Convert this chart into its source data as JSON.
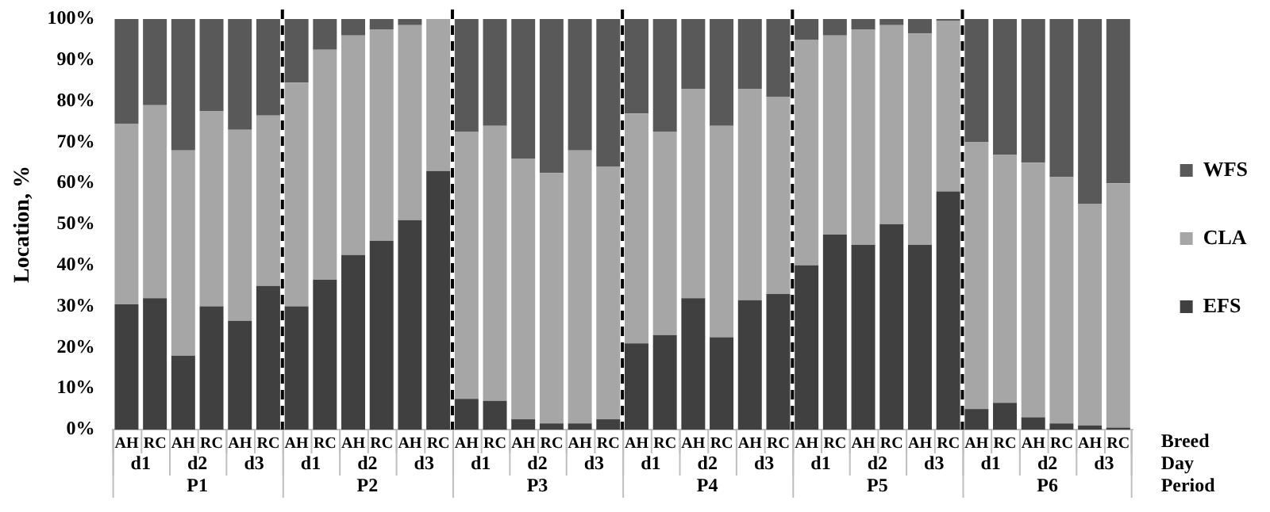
{
  "chart_data": {
    "type": "bar",
    "stacked": true,
    "ylabel": "Location, %",
    "categories": [
      [
        "AH",
        "d1",
        null
      ],
      [
        "RC",
        null,
        "P1"
      ],
      [
        "AH",
        "d2",
        null
      ],
      [
        "RC",
        null,
        null
      ],
      [
        "AH",
        "d3",
        null
      ],
      [
        "RC",
        null,
        null
      ],
      [
        "AH",
        "d1",
        null
      ],
      [
        "RC",
        null,
        "P2"
      ],
      [
        "AH",
        "d2",
        null
      ],
      [
        "RC",
        null,
        null
      ],
      [
        "AH",
        "d3",
        null
      ],
      [
        "RC",
        null,
        null
      ],
      [
        "AH",
        "d1",
        null
      ],
      [
        "RC",
        null,
        "P3"
      ],
      [
        "AH",
        "d2",
        null
      ],
      [
        "RC",
        null,
        null
      ],
      [
        "AH",
        "d3",
        null
      ],
      [
        "RC",
        null,
        null
      ],
      [
        "AH",
        "d1",
        null
      ],
      [
        "RC",
        null,
        "P4"
      ],
      [
        "AH",
        "d2",
        null
      ],
      [
        "RC",
        null,
        null
      ],
      [
        "AH",
        "d3",
        null
      ],
      [
        "RC",
        null,
        null
      ],
      [
        "AH",
        "d1",
        null
      ],
      [
        "RC",
        null,
        "P5"
      ],
      [
        "AH",
        "d2",
        null
      ],
      [
        "RC",
        null,
        null
      ],
      [
        "AH",
        "d3",
        null
      ],
      [
        "RC",
        null,
        null
      ],
      [
        "AH",
        "d1",
        null
      ],
      [
        "RC",
        null,
        "P6"
      ],
      [
        "AH",
        "d2",
        null
      ],
      [
        "RC",
        null,
        null
      ],
      [
        "AH",
        "d3",
        null
      ],
      [
        "RC",
        null,
        null
      ]
    ],
    "series": [
      {
        "name": "EFS",
        "color": "#404040",
        "values": [
          30.5,
          32,
          18,
          30,
          26.5,
          35,
          30,
          36.5,
          42.5,
          46,
          51,
          63,
          7.5,
          7,
          2.5,
          1.5,
          1.5,
          2.5,
          21,
          23,
          32,
          22.5,
          31.5,
          33,
          40,
          47.5,
          45,
          50,
          45,
          58,
          5,
          6.5,
          3,
          1.5,
          1,
          0.5
        ]
      },
      {
        "name": "CLA",
        "color": "#a6a6a6",
        "values": [
          44,
          47,
          50,
          47.5,
          46.5,
          41.5,
          54.5,
          56,
          53.5,
          51.5,
          47.5,
          37,
          65,
          67,
          63.5,
          61,
          66.5,
          61.5,
          56,
          49.5,
          51,
          51.5,
          51.5,
          48,
          55,
          48.5,
          52.5,
          48.5,
          51.5,
          41.5,
          65,
          60.5,
          62,
          60,
          54,
          59.5
        ]
      },
      {
        "name": "WFS",
        "color": "#595959",
        "values": [
          25.5,
          21,
          32,
          22.5,
          27,
          23.5,
          15.5,
          7.5,
          4,
          2.5,
          1.5,
          0,
          27.5,
          26,
          34,
          37.5,
          32,
          36,
          23,
          27.5,
          17,
          26,
          17,
          19,
          5,
          4,
          2.5,
          1.5,
          3.5,
          0.5,
          30,
          33,
          35,
          38.5,
          45,
          40
        ]
      }
    ],
    "ylim": [
      0,
      100
    ],
    "yticks": [
      {
        "value": 0,
        "label": "0%"
      },
      {
        "value": 10,
        "label": "10%"
      },
      {
        "value": 20,
        "label": "20%"
      },
      {
        "value": 30,
        "label": "30%"
      },
      {
        "value": 40,
        "label": "40%"
      },
      {
        "value": 50,
        "label": "50%"
      },
      {
        "value": 60,
        "label": "60%"
      },
      {
        "value": 70,
        "label": "70%"
      },
      {
        "value": 80,
        "label": "80%"
      },
      {
        "value": 90,
        "label": "90%"
      },
      {
        "value": 100,
        "label": "100%"
      }
    ],
    "grid": false,
    "legend": "right",
    "annotations": [
      "Breed",
      "Day",
      "Period"
    ]
  }
}
